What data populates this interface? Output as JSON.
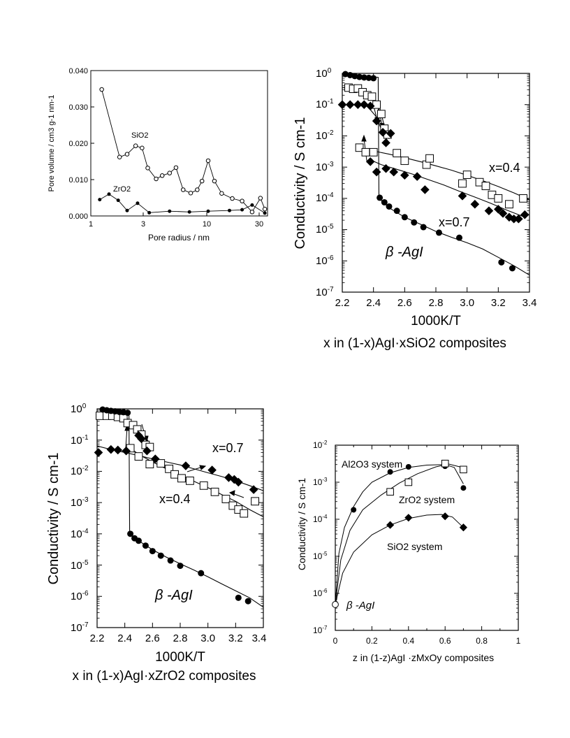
{
  "chart_data": [
    {
      "type": "line",
      "xlabel": "Pore radius / nm",
      "ylabel": "Pore volume / cm3 g-1 nm-1",
      "xscale": "log",
      "xlim": [
        1,
        37
      ],
      "ylim": [
        0,
        0.04
      ],
      "xticks": [
        "1",
        "3",
        "10",
        "30"
      ],
      "yticks": [
        "0.000",
        "0.010",
        "0.020",
        "0.030",
        "0.040"
      ],
      "series": [
        {
          "name": "SiO2",
          "marker": "open-circle",
          "x": [
            1.25,
            1.8,
            2.1,
            2.5,
            2.85,
            3.2,
            3.8,
            4.3,
            5.0,
            5.7,
            6.6,
            7.7,
            8.8,
            9.7,
            11.0,
            12.5,
            14.5,
            18.0,
            22.0,
            27.0,
            32.0,
            35.0
          ],
          "y": [
            0.0348,
            0.0162,
            0.017,
            0.0193,
            0.0187,
            0.0132,
            0.0102,
            0.0111,
            0.0118,
            0.0133,
            0.0072,
            0.0063,
            0.0072,
            0.0096,
            0.0152,
            0.0096,
            0.0062,
            0.0048,
            0.0041,
            0.0011,
            0.0049,
            0.0019
          ]
        },
        {
          "name": "ZrO2",
          "marker": "filled-circle",
          "x": [
            1.2,
            1.45,
            1.75,
            2.1,
            2.6,
            3.3,
            5.0,
            7.5,
            11.0,
            17.0,
            22.0,
            27.0,
            35.0
          ],
          "y": [
            0.0045,
            0.006,
            0.0043,
            0.0015,
            0.0035,
            0.0009,
            0.0013,
            0.0011,
            0.0013,
            0.0015,
            0.0017,
            0.003,
            0.0008
          ]
        }
      ]
    },
    {
      "type": "scatter",
      "xlabel": "1000K/T",
      "ylabel": "Conductivity / S cm-1",
      "yscale": "log",
      "xlim": [
        2.2,
        3.4
      ],
      "ylim": [
        1e-07,
        1
      ],
      "xticks": [
        "2.2",
        "2.4",
        "2.6",
        "2.8",
        "3.0",
        "3.2",
        "3.4"
      ],
      "caption": "x in (1-x)AgI·xSiO2 composites",
      "annotations": [
        "x=0.4",
        "x=0.7",
        "β -AgI"
      ],
      "series": [
        {
          "name": "x=0.4",
          "marker": "open-square",
          "x": [
            2.24,
            2.27,
            2.3,
            2.33,
            2.36,
            2.39,
            2.42,
            2.45,
            2.47,
            2.49,
            2.31,
            2.35,
            2.4,
            2.55,
            2.6,
            2.74,
            2.76,
            2.97,
            3.0,
            3.08,
            3.12,
            3.16,
            3.2,
            3.27,
            3.36
          ],
          "y": [
            0.35,
            0.32,
            0.33,
            0.25,
            0.2,
            0.18,
            0.1,
            0.05,
            0.017,
            0.011,
            0.0042,
            0.003,
            0.003,
            0.0028,
            0.0016,
            0.0012,
            0.0019,
            0.0003,
            0.00057,
            0.00033,
            0.00025,
            0.00013,
            0.0001,
            6.5e-05,
            0.0001
          ]
        },
        {
          "name": "x=0.7",
          "marker": "filled-diamond",
          "x": [
            2.2,
            2.25,
            2.3,
            2.34,
            2.38,
            2.42,
            2.46,
            2.48,
            2.51,
            2.38,
            2.42,
            2.48,
            2.53,
            2.6,
            2.68,
            2.73,
            2.97,
            3.05,
            3.14,
            3.2,
            3.23,
            3.27,
            3.3,
            3.33,
            3.37
          ],
          "y": [
            0.1,
            0.1,
            0.1,
            0.1,
            0.09,
            0.03,
            0.013,
            0.006,
            0.012,
            0.0015,
            0.0007,
            0.0009,
            0.0007,
            0.00055,
            0.0005,
            0.00019,
            0.00012,
            6.5e-05,
            4e-05,
            4.5e-05,
            3.3e-05,
            2.5e-05,
            2.2e-05,
            2.2e-05,
            3e-05
          ]
        },
        {
          "name": "β -AgI",
          "marker": "filled-circle",
          "x": [
            2.22,
            2.25,
            2.28,
            2.31,
            2.34,
            2.37,
            2.4,
            2.44,
            2.47,
            2.5,
            2.55,
            2.6,
            2.66,
            2.72,
            2.82,
            2.95,
            3.22,
            3.29
          ],
          "y": [
            0.95,
            0.88,
            0.82,
            0.77,
            0.74,
            0.72,
            0.7,
            0.000105,
            7.5e-05,
            5.5e-05,
            4e-05,
            2.5e-05,
            1.7e-05,
            1.2e-05,
            8e-06,
            5.5e-06,
            9e-07,
            5.8e-07
          ]
        }
      ]
    },
    {
      "type": "scatter",
      "xlabel": "1000K/T",
      "ylabel": "Conductivity / S cm-1",
      "yscale": "log",
      "xlim": [
        2.2,
        3.4
      ],
      "ylim": [
        1e-07,
        1
      ],
      "xticks": [
        "2.2",
        "2.4",
        "2.6",
        "2.8",
        "3.0",
        "3.2",
        "3.4"
      ],
      "caption": "x in (1-x)AgI·xZrO2 composites",
      "annotations": [
        "x=0.7",
        "x=0.4",
        "β -AgI"
      ],
      "series": [
        {
          "name": "x=0.4",
          "marker": "open-square",
          "x": [
            2.22,
            2.27,
            2.31,
            2.35,
            2.39,
            2.42,
            2.46,
            2.49,
            2.52,
            2.55,
            2.58,
            2.44,
            2.5,
            2.58,
            2.66,
            2.72,
            2.76,
            2.81,
            2.87,
            2.97,
            3.05,
            3.13,
            3.18,
            3.22,
            3.26,
            3.34
          ],
          "y": [
            0.6,
            0.6,
            0.6,
            0.55,
            0.5,
            0.35,
            0.3,
            0.22,
            0.15,
            0.07,
            0.06,
            0.055,
            0.03,
            0.017,
            0.018,
            0.012,
            0.008,
            0.006,
            0.005,
            0.0035,
            0.0022,
            0.0013,
            0.0008,
            0.0006,
            0.00045,
            0.0011
          ]
        },
        {
          "name": "x=0.7",
          "marker": "filled-diamond",
          "x": [
            2.21,
            2.3,
            2.35,
            2.41,
            2.5,
            2.52,
            2.56,
            2.62,
            2.84,
            3.03,
            3.15,
            3.19,
            3.22,
            3.33
          ],
          "y": [
            0.04,
            0.05,
            0.048,
            0.045,
            0.14,
            0.11,
            0.045,
            0.025,
            0.015,
            0.011,
            0.0063,
            0.0055,
            0.0045,
            0.0026
          ]
        },
        {
          "name": "β -AgI",
          "marker": "filled-circle",
          "x": [
            2.24,
            2.27,
            2.3,
            2.33,
            2.36,
            2.39,
            2.42,
            2.44,
            2.47,
            2.5,
            2.55,
            2.6,
            2.66,
            2.73,
            2.8,
            2.95,
            3.22,
            3.29
          ],
          "y": [
            0.95,
            0.9,
            0.86,
            0.83,
            0.8,
            0.78,
            0.75,
            0.0001,
            7.2e-05,
            6e-05,
            4.2e-05,
            2.8e-05,
            2e-05,
            1.4e-05,
            9.5e-06,
            5.5e-06,
            9e-07,
            7e-07
          ]
        }
      ]
    },
    {
      "type": "scatter",
      "xlabel": "z in (1-z)AgI ·zMxOy composites",
      "ylabel": "Conductivity / S cm-1",
      "yscale": "log",
      "xlim": [
        0,
        1
      ],
      "ylim": [
        1e-07,
        0.01
      ],
      "xticks": [
        "0",
        "0.2",
        "0.4",
        "0.6",
        "0.8",
        "1"
      ],
      "annotations": [
        "Al2O3 system",
        "ZrO2 system",
        "SiO2 system",
        "β -AgI"
      ],
      "series": [
        {
          "name": "Al2O3 system",
          "marker": "filled-circle",
          "x": [
            0.1,
            0.3,
            0.4,
            0.6,
            0.7
          ],
          "y": [
            0.00018,
            0.0019,
            0.0026,
            0.0027,
            0.0007
          ]
        },
        {
          "name": "ZrO2 system",
          "marker": "open-square",
          "x": [
            0.3,
            0.4,
            0.6,
            0.7
          ],
          "y": [
            0.00055,
            0.001,
            0.0032,
            0.0022
          ]
        },
        {
          "name": "SiO2 system",
          "marker": "filled-diamond",
          "x": [
            0.3,
            0.4,
            0.6,
            0.7
          ],
          "y": [
            7e-05,
            0.00011,
            0.00012,
            6e-05
          ]
        },
        {
          "name": "β -AgI",
          "marker": "open-circle",
          "x": [
            0.0
          ],
          "y": [
            5e-07
          ]
        }
      ]
    }
  ]
}
